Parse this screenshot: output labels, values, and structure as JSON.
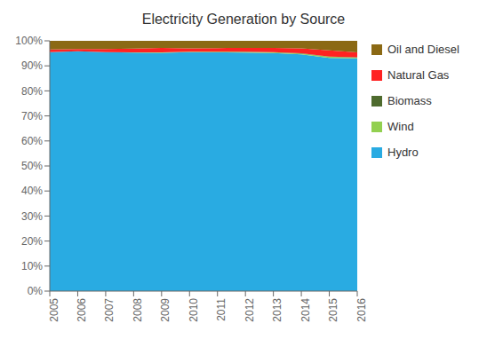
{
  "chart_data": {
    "type": "area",
    "title": "Electricity Generation by Source",
    "stacked": true,
    "grid": false,
    "legend": "right",
    "x": [
      2005,
      2006,
      2007,
      2008,
      2009,
      2010,
      2011,
      2012,
      2013,
      2014,
      2015,
      2016
    ],
    "xlim": [
      2005,
      2016
    ],
    "xticks": [
      2005,
      2006,
      2007,
      2008,
      2009,
      2010,
      2011,
      2012,
      2013,
      2014,
      2015,
      2016
    ],
    "ylim": [
      0,
      100
    ],
    "yticks": [
      {
        "value": 0,
        "label": "0%"
      },
      {
        "value": 10,
        "label": "10%"
      },
      {
        "value": 20,
        "label": "20%"
      },
      {
        "value": 30,
        "label": "30%"
      },
      {
        "value": 40,
        "label": "40%"
      },
      {
        "value": 50,
        "label": "50%"
      },
      {
        "value": 60,
        "label": "60%"
      },
      {
        "value": 70,
        "label": "70%"
      },
      {
        "value": 80,
        "label": "80%"
      },
      {
        "value": 90,
        "label": "90%"
      },
      {
        "value": 100,
        "label": "100%"
      }
    ],
    "series": [
      {
        "name": "Hydro",
        "color": "#29ABE2",
        "values": [
          95.5,
          95.8,
          95.5,
          95.3,
          95.2,
          95.5,
          95.4,
          95.3,
          95.1,
          94.6,
          93.2,
          93.0
        ]
      },
      {
        "name": "Wind",
        "color": "#92D050",
        "values": [
          0.0,
          0.0,
          0.0,
          0.1,
          0.2,
          0.2,
          0.3,
          0.3,
          0.3,
          0.3,
          0.4,
          0.3
        ]
      },
      {
        "name": "Biomass",
        "color": "#4E6B2E",
        "values": [
          0.0,
          0.0,
          0.0,
          0.0,
          0.0,
          0.0,
          0.0,
          0.1,
          0.1,
          0.1,
          0.1,
          0.1
        ]
      },
      {
        "name": "Natural Gas",
        "color": "#FF2222",
        "values": [
          1.0,
          0.9,
          1.2,
          1.5,
          1.8,
          1.3,
          1.4,
          1.5,
          1.7,
          2.0,
          2.5,
          2.0
        ]
      },
      {
        "name": "Oil and Diesel",
        "color": "#8B6914",
        "values": [
          3.5,
          3.3,
          3.3,
          3.1,
          2.8,
          3.0,
          2.9,
          2.8,
          2.8,
          3.0,
          3.8,
          4.6
        ]
      }
    ]
  }
}
